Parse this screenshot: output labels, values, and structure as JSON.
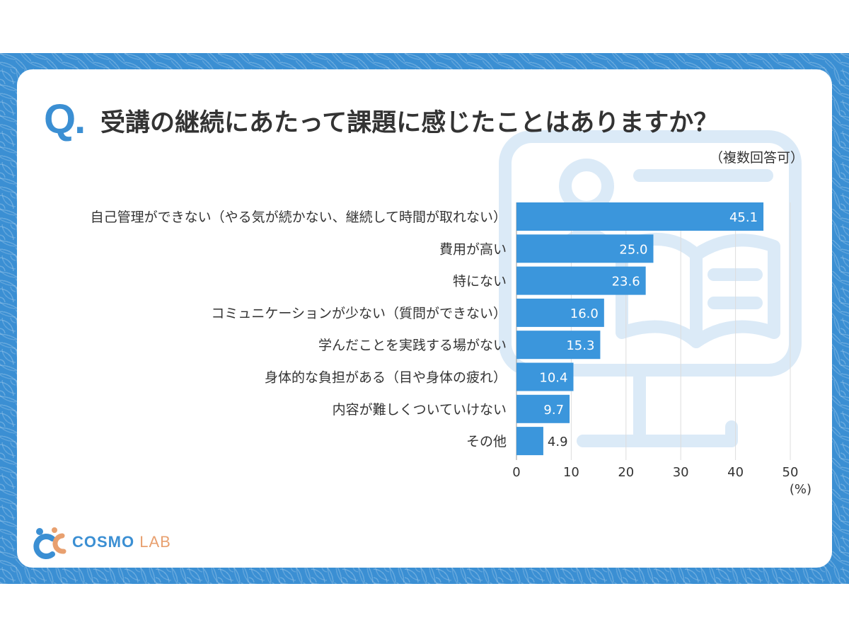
{
  "title": {
    "q_mark": "Q.",
    "question": "受講の継続にあたって課題に感じたことはありますか？",
    "note": "（複数回答可）"
  },
  "chart_data": {
    "type": "bar",
    "orientation": "horizontal",
    "categories": [
      "自己管理ができない（やる気が続かない、継続して時間が取れない）",
      "費用が高い",
      "特にない",
      "コミュニケーションが少ない（質問ができない）",
      "学んだことを実践する場がない",
      "身体的な負担がある（目や身体の疲れ）",
      "内容が難しくついていけない",
      "その他"
    ],
    "values": [
      45.1,
      25.0,
      23.6,
      16.0,
      15.3,
      10.4,
      9.7,
      4.9
    ],
    "value_labels": [
      "45.1",
      "25.0",
      "23.6",
      "16.0",
      "15.3",
      "10.4",
      "9.7",
      "4.9"
    ],
    "xlim": [
      0,
      50
    ],
    "xticks": [
      "0",
      "10",
      "20",
      "30",
      "40",
      "50"
    ],
    "unit": "(%)",
    "grid": true,
    "bar_color": "#3b96dc"
  },
  "logo": {
    "part1": "COSMO",
    "part2": "LAB",
    "color1": "#3b8fd3",
    "color2": "#e8a06f"
  }
}
